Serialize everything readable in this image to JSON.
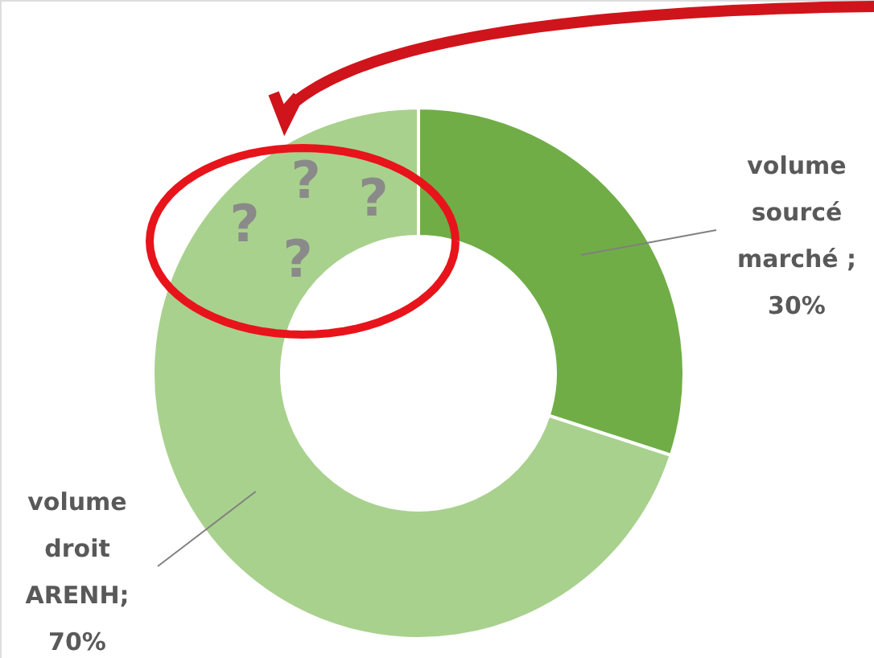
{
  "chart_data": {
    "type": "donut",
    "categories": [
      "volume sourcé marché",
      "volume droit ARENH"
    ],
    "values": [
      30,
      70
    ],
    "colors": [
      "#70ad47",
      "#a9d18e"
    ],
    "value_labels": [
      " ; 30%",
      "; 70%"
    ],
    "annotations": [
      "?",
      "?",
      "?",
      "?"
    ]
  }
}
